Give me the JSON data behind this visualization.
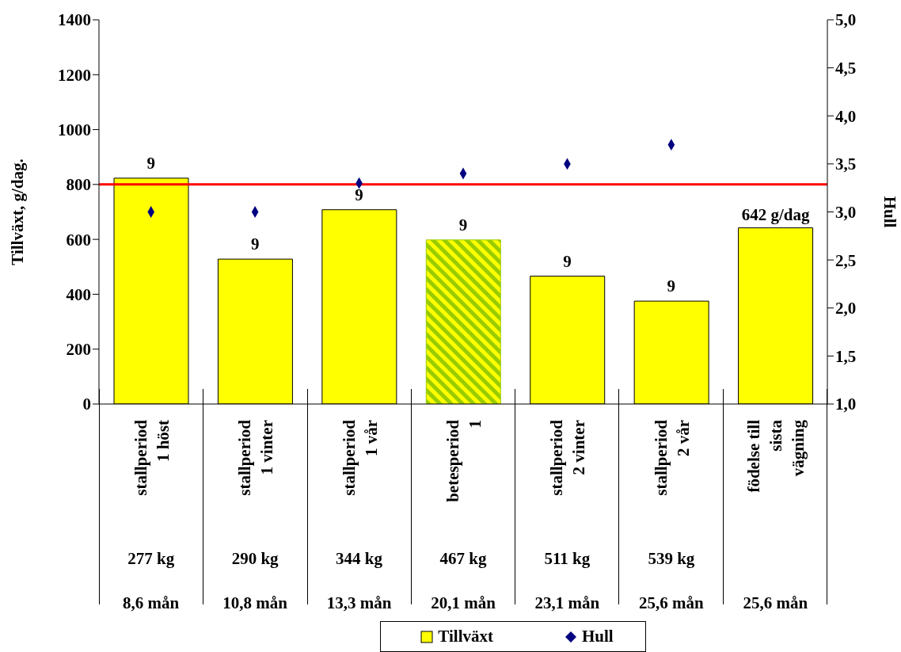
{
  "chart_data": {
    "type": "bar",
    "categories": [
      "stallperiod\n1 höst\n\n277 kg\n8,6 mån",
      "stallperiod\n1 vinter\n\n290 kg\n10,8 mån",
      "stallperiod\n1 vår\n\n344 kg\n13,3 mån",
      "betesperiod\n1\n\n467 kg\n20,1 mån",
      "stallperiod\n2 vinter\n\n511 kg\n23,1 mån",
      "stallperiod\n2 vår\n\n539 kg\n25,6 mån",
      "födelse till\nsista\nvägning\n\n\n25,6 mån"
    ],
    "series": [
      {
        "name": "Tillväxt",
        "color": "#ffff00",
        "colors": [
          "#ffff00",
          "#ffff00",
          "#ffff00",
          "#99cc00",
          "#ffff00",
          "#ffff00",
          "#ffff00"
        ],
        "values": [
          823,
          528,
          708,
          598,
          466,
          375,
          642
        ],
        "value_labels": [
          null,
          null,
          null,
          null,
          null,
          null,
          "642 g/dag"
        ]
      },
      {
        "name": "Hull",
        "type": "scatter",
        "axis": "y2",
        "color": "#000080",
        "marker": "diamond",
        "values": [
          3.0,
          3.0,
          3.3,
          3.4,
          3.5,
          3.7,
          null
        ]
      }
    ],
    "ylabel": "Tillväxt, g/dag.",
    "y2label": "Hull",
    "ylim": [
      0,
      1400
    ],
    "yticks": [
      0,
      200,
      400,
      600,
      800,
      1000,
      1200,
      1400
    ],
    "y2lim": [
      1,
      5
    ],
    "y2ticks": [
      {
        "value": 1,
        "label": "1,0"
      },
      {
        "value": 1.5,
        "label": "1,5"
      },
      {
        "value": 2,
        "label": "2,0"
      },
      {
        "value": 2.5,
        "label": "2,5"
      },
      {
        "value": 3,
        "label": "3,0"
      },
      {
        "value": 3.5,
        "label": "3,5"
      },
      {
        "value": 4,
        "label": "4,0"
      },
      {
        "value": 4.5,
        "label": "4,5"
      },
      {
        "value": 5,
        "label": "5,0"
      }
    ],
    "ref_lines": [
      {
        "axis": "y",
        "value": 800,
        "color": "#ff0000"
      }
    ],
    "annotations": [
      {
        "text": "9",
        "x": "stallperiod\n1 höst\n\n277 kg\n8,6 mån",
        "y": 823
      },
      {
        "text": "9",
        "x": "stallperiod\n1 vinter\n\n290 kg\n10,8 mån",
        "y": 528
      },
      {
        "text": "9",
        "x": "stallperiod\n1 vår\n\n344 kg\n13,3 mån",
        "y": 708
      },
      {
        "text": "9",
        "x": "betesperiod\n1\n\n467 kg\n20,1 mån",
        "y": 598
      },
      {
        "text": "9",
        "x": "stallperiod\n2 vinter\n\n511 kg\n23,1 mån",
        "y": 466
      },
      {
        "text": "9",
        "x": "stallperiod\n2 vår\n\n539 kg\n25,6 mån",
        "y": 375
      }
    ],
    "legend": "bottom"
  }
}
